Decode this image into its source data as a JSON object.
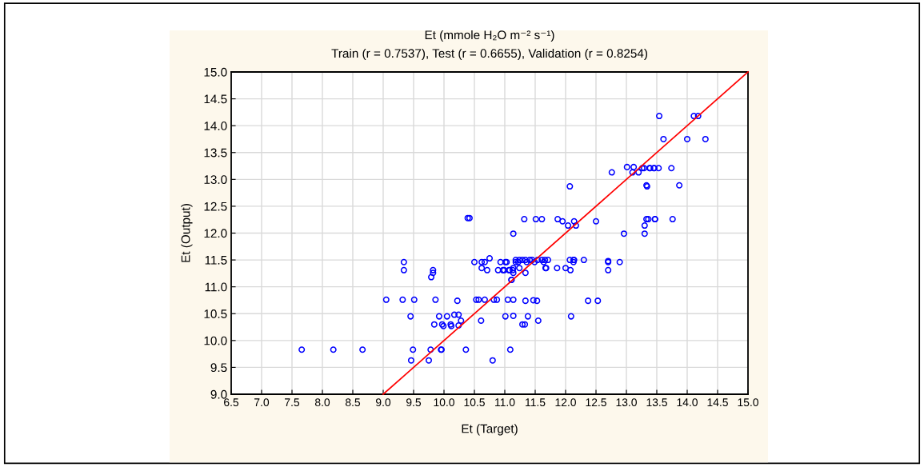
{
  "chart_data": {
    "type": "scatter",
    "title": "Et (mmole H₂O m⁻² s⁻¹)",
    "subtitle": "Train (r = 0.7537), Test (r = 0.6655), Validation (r = 0.8254)",
    "xlabel": "Et (Target)",
    "ylabel": "Et (Output)",
    "xlim": [
      6.5,
      15.0
    ],
    "ylim": [
      9.0,
      15.0
    ],
    "xticks": [
      {
        "value": 6.5,
        "label": "6.5"
      },
      {
        "value": 7.0,
        "label": "7.0"
      },
      {
        "value": 7.5,
        "label": "7.5"
      },
      {
        "value": 8.0,
        "label": "8.0"
      },
      {
        "value": 8.5,
        "label": "8.5"
      },
      {
        "value": 9.0,
        "label": "9.0"
      },
      {
        "value": 9.5,
        "label": "9.5"
      },
      {
        "value": 10.0,
        "label": "10.0"
      },
      {
        "value": 10.5,
        "label": "10.5"
      },
      {
        "value": 11.0,
        "label": "11.0"
      },
      {
        "value": 11.5,
        "label": "11.5"
      },
      {
        "value": 12.0,
        "label": "12.0"
      },
      {
        "value": 12.5,
        "label": "12.5"
      },
      {
        "value": 13.0,
        "label": "13.0"
      },
      {
        "value": 13.5,
        "label": "13.5"
      },
      {
        "value": 14.0,
        "label": "14.0"
      },
      {
        "value": 14.5,
        "label": "14.5"
      },
      {
        "value": 15.0,
        "label": "15.0"
      }
    ],
    "yticks": [
      {
        "value": 9.0,
        "label": "9.0"
      },
      {
        "value": 9.5,
        "label": "9.5"
      },
      {
        "value": 10.0,
        "label": "10.0"
      },
      {
        "value": 10.5,
        "label": "10.5"
      },
      {
        "value": 11.0,
        "label": "11.0"
      },
      {
        "value": 11.5,
        "label": "11.5"
      },
      {
        "value": 12.0,
        "label": "12.0"
      },
      {
        "value": 12.5,
        "label": "12.5"
      },
      {
        "value": 13.0,
        "label": "13.0"
      },
      {
        "value": 13.5,
        "label": "13.5"
      },
      {
        "value": 14.0,
        "label": "14.0"
      },
      {
        "value": 14.5,
        "label": "14.5"
      },
      {
        "value": 15.0,
        "label": "15.0"
      }
    ],
    "grid": true,
    "marker": "circle",
    "series": [
      {
        "color": "#0000ff",
        "x": [
          7.66,
          8.18,
          8.66,
          9.49,
          9.78,
          9.95,
          9.96,
          10.36,
          11.09,
          9.46,
          9.75,
          10.8,
          9.84,
          9.97,
          9.99,
          10.11,
          10.12,
          10.24,
          10.28,
          9.92,
          10.05,
          10.17,
          10.24,
          9.45,
          10.61,
          11.01,
          11.14,
          9.05,
          9.32,
          9.51,
          9.86,
          10.22,
          10.53,
          10.57,
          10.67,
          10.82,
          10.87,
          11.05,
          11.14,
          11.34,
          11.47,
          11.53,
          12.37,
          12.53,
          11.38,
          12.09,
          11.55,
          11.29,
          11.33,
          9.34,
          10.5,
          10.62,
          10.67,
          10.75,
          10.93,
          11.01,
          11.18,
          11.22,
          9.34,
          9.82,
          9.79,
          9.82,
          10.62,
          10.71,
          10.89,
          10.97,
          11.07,
          11.13,
          11.11,
          11.14,
          11.18,
          11.24,
          11.29,
          11.34,
          11.41,
          11.45,
          11.54,
          11.61,
          11.66,
          11.71,
          11.03,
          11.36,
          11.49,
          11.64,
          11.24,
          11.67,
          11.68,
          11.86,
          12.0,
          10.99,
          11.08,
          12.08,
          11.14,
          11.34,
          11.11,
          12.07,
          12.13,
          12.14,
          12.3,
          12.13,
          12.7,
          12.7,
          12.89,
          12.7,
          11.32,
          11.51,
          11.61,
          11.87,
          13.36,
          13.47,
          11.95,
          12.14,
          12.5,
          12.04,
          12.17,
          13.3,
          11.14,
          12.96,
          13.3,
          12.07,
          13.34,
          10.39,
          10.42,
          12.76,
          13.01,
          13.12,
          13.1,
          13.2,
          13.26,
          13.29,
          13.38,
          13.45,
          13.39,
          13.46,
          13.53,
          13.74,
          13.33,
          13.87,
          13.61,
          14.0,
          14.3,
          13.54,
          14.11,
          14.18,
          13.33,
          13.47,
          13.76
        ],
        "values": [
          9.83,
          9.83,
          9.83,
          9.83,
          9.83,
          9.83,
          9.83,
          9.83,
          9.83,
          9.63,
          9.63,
          9.63,
          10.3,
          10.3,
          10.27,
          10.3,
          10.27,
          10.28,
          10.37,
          10.45,
          10.45,
          10.48,
          10.48,
          10.45,
          10.37,
          10.45,
          10.46,
          10.76,
          10.76,
          10.76,
          10.76,
          10.74,
          10.76,
          10.76,
          10.76,
          10.76,
          10.76,
          10.76,
          10.76,
          10.74,
          10.75,
          10.74,
          10.74,
          10.74,
          10.45,
          10.45,
          10.37,
          10.3,
          10.3,
          11.46,
          11.46,
          11.46,
          11.46,
          11.53,
          11.46,
          11.46,
          11.46,
          11.46,
          11.31,
          11.31,
          11.18,
          11.26,
          11.35,
          11.31,
          11.31,
          11.31,
          11.31,
          11.31,
          11.13,
          11.35,
          11.5,
          11.5,
          11.5,
          11.5,
          11.5,
          11.5,
          11.5,
          11.5,
          11.5,
          11.5,
          11.46,
          11.46,
          11.46,
          11.46,
          11.35,
          11.35,
          11.35,
          11.35,
          11.35,
          11.31,
          11.31,
          11.31,
          11.26,
          11.26,
          11.13,
          11.5,
          11.5,
          11.5,
          11.5,
          11.46,
          11.48,
          11.46,
          11.46,
          11.31,
          12.26,
          12.26,
          12.26,
          12.26,
          12.26,
          12.26,
          12.22,
          12.22,
          12.22,
          12.14,
          12.14,
          12.14,
          11.99,
          11.99,
          11.99,
          12.87,
          12.87,
          12.28,
          12.28,
          13.13,
          13.23,
          13.23,
          13.13,
          13.13,
          13.21,
          13.21,
          13.21,
          13.21,
          13.21,
          13.21,
          13.21,
          13.21,
          12.89,
          12.89,
          13.75,
          13.75,
          13.75,
          14.18,
          14.18,
          14.18,
          12.26,
          12.26,
          12.26
        ]
      },
      {
        "type": "line",
        "color": "#ff0000",
        "x": [
          9.0,
          15.0
        ],
        "values": [
          9.0,
          15.0
        ],
        "marker": "none"
      }
    ]
  }
}
